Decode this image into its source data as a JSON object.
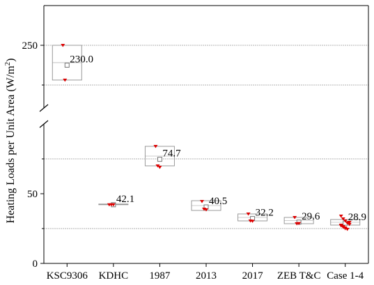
{
  "chart_data": {
    "type": "box",
    "ylabel": "Heating Loads per Unit Area (W/m²)",
    "ylabel_main": "Heating Loads per Unit Area (W/m",
    "ylabel_sup": "2",
    "ylabel_tail": ")",
    "categories": [
      "KSC9306",
      "KDHC",
      "1987",
      "2013",
      "2017",
      "ZEB T&C",
      "Case 1-4"
    ],
    "axis_break": true,
    "lower_range": [
      0,
      100
    ],
    "upper_range": [
      200,
      265
    ],
    "yticks_lower": [
      "0",
      "50"
    ],
    "yticks_upper": [
      "250"
    ],
    "gridlines": [
      25,
      75,
      210,
      250
    ],
    "box_color": "#999999",
    "point_color": "#dd0000",
    "boxes": [
      {
        "category": "KSC9306",
        "mean": 230.0,
        "mean_label": "230.0",
        "q1": 215,
        "q3": 250,
        "points": [
          250,
          215
        ]
      },
      {
        "category": "KDHC",
        "mean": 42.1,
        "mean_label": "42.1",
        "q1": 42.1,
        "q3": 42.6,
        "points": [
          42.1,
          42.1,
          42.1
        ]
      },
      {
        "category": "1987",
        "mean": 74.7,
        "mean_label": "74.7",
        "q1": 70,
        "q3": 84,
        "points": [
          84,
          70,
          69
        ]
      },
      {
        "category": "2013",
        "mean": 40.5,
        "mean_label": "40.5",
        "q1": 38,
        "q3": 45,
        "points": [
          44.5,
          39,
          38.5
        ]
      },
      {
        "category": "2017",
        "mean": 32.2,
        "mean_label": "32.2",
        "q1": 30.5,
        "q3": 35.5,
        "points": [
          35.5,
          30.5,
          30.3
        ]
      },
      {
        "category": "ZEB T&C",
        "mean": 29.6,
        "mean_label": "29.6",
        "q1": 28.5,
        "q3": 33,
        "points": [
          33,
          28.5,
          28.7
        ]
      },
      {
        "category": "Case 1-4",
        "mean": 28.9,
        "mean_label": "28.9",
        "q1": 27.5,
        "q3": 31.5,
        "points": [
          34,
          32,
          30.5,
          29,
          28,
          27,
          26,
          25,
          24.5,
          29.5,
          27.5,
          26.5,
          25.5
        ]
      }
    ]
  }
}
